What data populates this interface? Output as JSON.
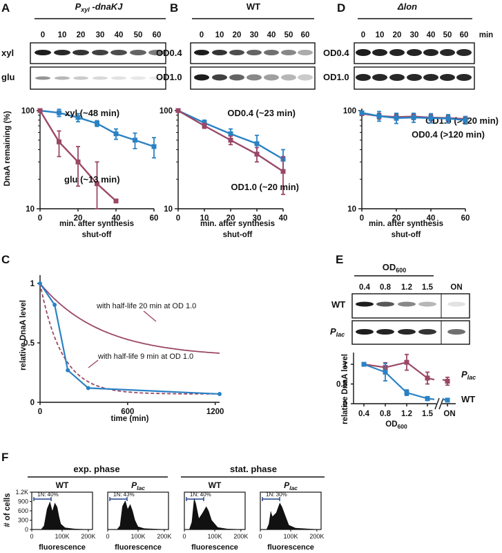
{
  "panels": {
    "A": "A",
    "B": "B",
    "C": "C",
    "D": "D",
    "E": "E",
    "F": "F"
  },
  "blots": {
    "A": {
      "title_main": "P",
      "title_sub": "xyl",
      "title_rest": " -dnaKJ",
      "times": [
        "0",
        "10",
        "20",
        "30",
        "40",
        "50",
        "60"
      ],
      "rows": [
        "xyl",
        "glu"
      ]
    },
    "B": {
      "title": "WT",
      "times": [
        "0",
        "10",
        "20",
        "30",
        "40",
        "50",
        "60"
      ],
      "rows": [
        "OD0.4",
        "OD1.0"
      ]
    },
    "D": {
      "title": "Δlon",
      "times": [
        "0",
        "10",
        "20",
        "30",
        "40",
        "50",
        "60"
      ],
      "unit": "min",
      "rows": [
        "OD0.4",
        "OD1.0"
      ]
    },
    "E": {
      "title_main": "OD",
      "title_sub": "600",
      "lanes": [
        "0.4",
        "0.8",
        "1.2",
        "1.5",
        "ON"
      ],
      "rows": [
        "WT",
        "P"
      ],
      "row2_sub": "lac"
    }
  },
  "chart_data": [
    {
      "panel": "A",
      "type": "line",
      "yscale": "log",
      "ylim": [
        10,
        100
      ],
      "xlim": [
        0,
        60
      ],
      "ylabel": "DnaA remaining (%)",
      "xlabel_line1": "min. after synthesis",
      "xlabel_line2": "shut-off",
      "yticks": [
        "100",
        "10"
      ],
      "xticks": [
        "0",
        "20",
        "40",
        "60"
      ],
      "series": [
        {
          "name": "xyl (~48 min)",
          "color": "#2a82c4",
          "marker": "square",
          "x": [
            0,
            10,
            20,
            30,
            40,
            50,
            60
          ],
          "y": [
            100,
            95,
            85,
            74,
            58,
            50,
            43
          ],
          "err": [
            0,
            8,
            8,
            5,
            7,
            9,
            10
          ]
        },
        {
          "name": "glu (~13 min)",
          "color": "#9a4766",
          "marker": "square",
          "x": [
            0,
            10,
            20,
            30,
            40
          ],
          "y": [
            100,
            48,
            30,
            18,
            12
          ],
          "err": [
            0,
            14,
            13,
            12,
            0
          ]
        }
      ]
    },
    {
      "panel": "B",
      "type": "line",
      "yscale": "log",
      "ylim": [
        10,
        100
      ],
      "xlim": [
        0,
        40
      ],
      "xlabel_line1": "min. after synthesis",
      "xlabel_line2": "shut-off",
      "yticks": [
        "100",
        "10"
      ],
      "xticks": [
        "0",
        "10",
        "20",
        "30",
        "40"
      ],
      "series": [
        {
          "name": "OD0.4 (~23 min)",
          "color": "#2a82c4",
          "marker": "square",
          "x": [
            0,
            10,
            20,
            30,
            40
          ],
          "y": [
            100,
            75,
            58,
            46,
            32
          ],
          "err": [
            0,
            5,
            7,
            10,
            8
          ]
        },
        {
          "name": "OD1.0 (~20 min)",
          "color": "#9a4766",
          "marker": "square",
          "x": [
            0,
            10,
            20,
            30,
            40
          ],
          "y": [
            100,
            70,
            50,
            36,
            24
          ],
          "err": [
            0,
            4,
            5,
            6,
            10
          ]
        }
      ]
    },
    {
      "panel": "D",
      "type": "line",
      "yscale": "log",
      "ylim": [
        10,
        100
      ],
      "xlim": [
        0,
        60
      ],
      "xlabel_line1": "min. after synthesis",
      "xlabel_line2": "shut-off",
      "yticks": [
        "100",
        "10"
      ],
      "xticks": [
        "0",
        "20",
        "40",
        "60"
      ],
      "series": [
        {
          "name": "OD1.0 (>120 min)",
          "color": "#9a4766",
          "marker": "square",
          "x": [
            0,
            10,
            20,
            30,
            40,
            50,
            60
          ],
          "y": [
            93,
            88,
            86,
            87,
            85,
            84,
            82
          ],
          "err": [
            0,
            6,
            6,
            6,
            6,
            6,
            5
          ]
        },
        {
          "name": "OD0.4 (>120 min)",
          "color": "#2a82c4",
          "marker": "square",
          "x": [
            0,
            10,
            20,
            30,
            40,
            50,
            60
          ],
          "y": [
            95,
            88,
            84,
            85,
            84,
            83,
            80
          ],
          "err": [
            0,
            10,
            10,
            9,
            9,
            8,
            7
          ]
        }
      ]
    },
    {
      "panel": "C",
      "type": "line",
      "ylim": [
        0,
        1.1
      ],
      "xlim": [
        0,
        1250
      ],
      "ylabel": "relative DnaA level",
      "xlabel": "time (min)",
      "yticks": [
        "0",
        "0.5",
        "1"
      ],
      "xticks": [
        "0",
        "600",
        "1200"
      ],
      "annotations": [
        "with half-life 20 min at OD 1.0",
        "with half-life 9 min at OD 1.0"
      ],
      "series": [
        {
          "color": "#2a82c4",
          "style": "solid",
          "marker": "circle",
          "x": [
            0,
            100,
            190,
            330,
            1230
          ],
          "y": [
            1.0,
            0.82,
            0.27,
            0.12,
            0.07
          ]
        },
        {
          "color": "#9a4766",
          "style": "solid",
          "kind": "model",
          "half_life_min": 20
        },
        {
          "color": "#9a4766",
          "style": "dashed",
          "kind": "model",
          "half_life_min": 9
        }
      ]
    },
    {
      "panel": "E",
      "type": "line",
      "ylim": [
        0,
        1.3
      ],
      "ylabel": "relative DnaA level",
      "xlabel_main": "OD",
      "xlabel_sub": "600",
      "categories": [
        "0.4",
        "0.8",
        "1.2",
        "1.5",
        "ON"
      ],
      "yticks": [
        "0",
        "0.5",
        "1"
      ],
      "series": [
        {
          "name": "P",
          "name_sub": "lac",
          "color": "#9a4766",
          "marker": "square",
          "y": [
            1.0,
            0.92,
            1.05,
            0.65,
            0.57
          ],
          "err": [
            0,
            0.12,
            0.2,
            0.15,
            0.1
          ]
        },
        {
          "name": "WT",
          "color": "#2a82c4",
          "marker": "square",
          "y": [
            1.0,
            0.8,
            0.28,
            0.13,
            0.09
          ],
          "err": [
            0,
            0.22,
            0.07,
            0.05,
            0.02
          ]
        }
      ]
    }
  ],
  "flow": {
    "group_labels": [
      "exp. phase",
      "stat. phase"
    ],
    "ylabel": "# of cells",
    "yticks": [
      "1.2K",
      "900",
      "600",
      "300",
      "0"
    ],
    "xticks": [
      "0",
      "100K",
      "200K"
    ],
    "xlabel": "fluorescence",
    "plots": [
      {
        "title": "WT",
        "gate_label": "1N: 40%"
      },
      {
        "title": "P",
        "title_sub": "lac",
        "gate_label": "1N: 43%"
      },
      {
        "title": "WT",
        "gate_label": "1N: 40%"
      },
      {
        "title": "P",
        "title_sub": "lac",
        "gate_label": "1N: 30%"
      }
    ]
  }
}
